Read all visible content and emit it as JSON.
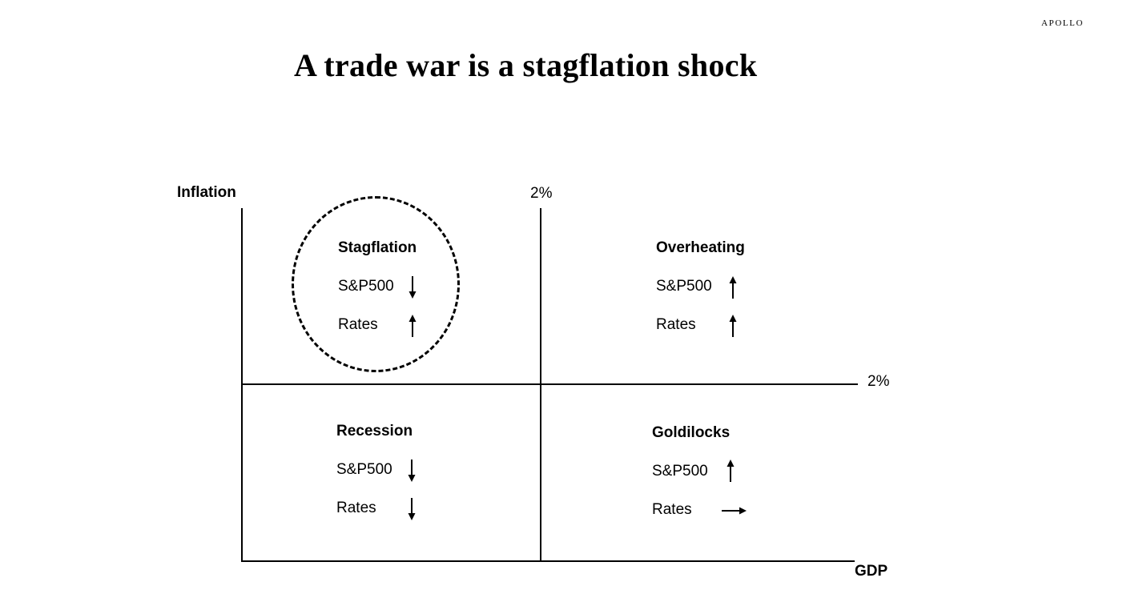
{
  "brand": "APOLLO",
  "title": "A trade war is a stagflation shock",
  "axes": {
    "y_label": "Inflation",
    "x_label": "GDP",
    "gdp_threshold": "2%",
    "inflation_threshold": "2%"
  },
  "quadrants": {
    "stagflation": {
      "title": "Stagflation",
      "highlighted": true,
      "rows": [
        {
          "label": "S&P500",
          "direction": "down"
        },
        {
          "label": "Rates",
          "direction": "up"
        }
      ]
    },
    "overheating": {
      "title": "Overheating",
      "rows": [
        {
          "label": "S&P500",
          "direction": "up"
        },
        {
          "label": "Rates",
          "direction": "up"
        }
      ]
    },
    "recession": {
      "title": "Recession",
      "rows": [
        {
          "label": "S&P500",
          "direction": "down"
        },
        {
          "label": "Rates",
          "direction": "down"
        }
      ]
    },
    "goldilocks": {
      "title": "Goldilocks",
      "rows": [
        {
          "label": "S&P500",
          "direction": "up"
        },
        {
          "label": "Rates",
          "direction": "flat"
        }
      ]
    }
  }
}
